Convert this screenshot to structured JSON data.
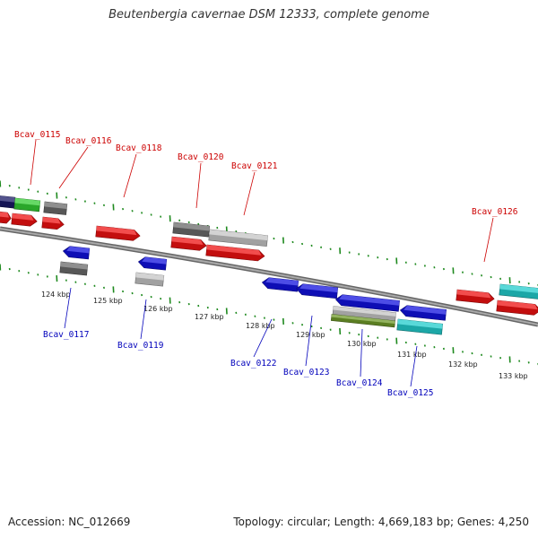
{
  "title": "Beutenbergia cavernae DSM 12333, complete genome",
  "accession": "Accession: NC_012669",
  "topology": "Topology: circular; Length: 4,669,183 bp; Genes: 4,250",
  "colors": {
    "forward_label": "#cc0000",
    "reverse_label": "#0000bb",
    "backbone": "#888888",
    "tick": "#1f8a1f",
    "red": "#ee1111",
    "blue": "#1111dd",
    "green": "#33cc33",
    "navy": "#1a1a66",
    "dark_gray": "#6a6a6a",
    "light_gray": "#c4c4c4",
    "cyan": "#22cccc",
    "olive": "#6f9a2a"
  },
  "scale_labels": [
    "124 kbp",
    "125 kbp",
    "126 kbp",
    "127 kbp",
    "128 kbp",
    "129 kbp",
    "130 kbp",
    "131 kbp",
    "132 kbp",
    "133 kbp"
  ],
  "forward_labels": [
    "Bcav_0115",
    "Bcav_0116",
    "Bcav_0118",
    "Bcav_0120",
    "Bcav_0121",
    "Bcav_0126"
  ],
  "reverse_labels": [
    "Bcav_0117",
    "Bcav_0119",
    "Bcav_0122",
    "Bcav_0123",
    "Bcav_0124",
    "Bcav_0125"
  ]
}
